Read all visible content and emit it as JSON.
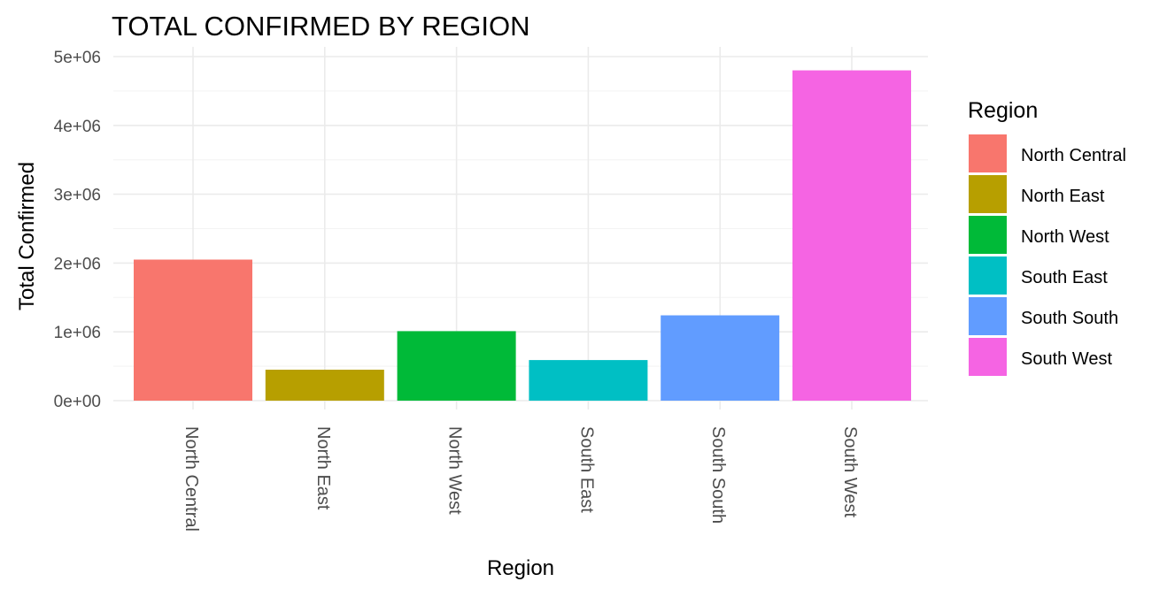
{
  "chart_data": {
    "type": "bar",
    "title": "TOTAL CONFIRMED BY REGION",
    "xlabel": "Region",
    "ylabel": "Total Confirmed",
    "categories": [
      "North Central",
      "North East",
      "North West",
      "South East",
      "South South",
      "South West"
    ],
    "values": [
      2050000,
      450000,
      1010000,
      590000,
      1240000,
      4800000
    ],
    "colors": [
      "#F8766D",
      "#B79F00",
      "#00BA38",
      "#00BFC4",
      "#619CFF",
      "#F564E3"
    ],
    "ylim": [
      0,
      5000000
    ],
    "yticks": [
      0,
      1000000,
      2000000,
      3000000,
      4000000,
      5000000
    ],
    "ytick_labels": [
      "0e+00",
      "1e+06",
      "2e+06",
      "3e+06",
      "4e+06",
      "5e+06"
    ],
    "grid": true,
    "legend": {
      "title": "Region",
      "position": "right",
      "entries": [
        "North Central",
        "North East",
        "North West",
        "South East",
        "South South",
        "South West"
      ]
    }
  }
}
